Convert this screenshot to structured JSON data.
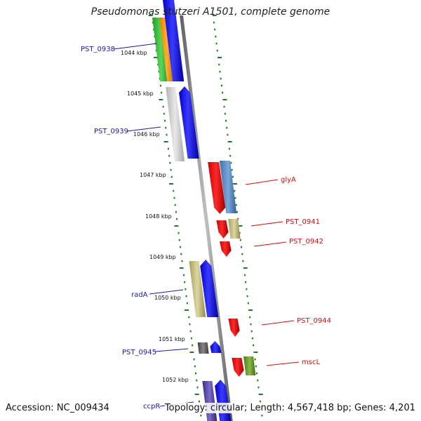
{
  "title": "Pseudomonas stutzeri A1501, complete genome",
  "accession_text": "Accession: NC_009434",
  "summary_text": "Topology: circular; Length: 4,567,418 bp; Genes: 4,201",
  "colors": {
    "strand_forward_label": "#1a1aa6",
    "strand_reverse_label": "#cc1111",
    "tick_dash": "#1e7d1e",
    "backbone": "#8a8a8a"
  },
  "kbp_labels": [
    "1044 kbp",
    "1045 kbp",
    "1046 kbp",
    "1047 kbp",
    "1048 kbp",
    "1049 kbp",
    "1050 kbp",
    "1051 kbp",
    "1052 kbp"
  ],
  "gene_labels_left": [
    {
      "text": "PST_0938",
      "color": "#1a1aa6"
    },
    {
      "text": "PST_0939",
      "color": "#1a1aa6"
    },
    {
      "text": "radA",
      "color": "#1a1aa6"
    },
    {
      "text": "PST_0945",
      "color": "#1a1aa6"
    },
    {
      "text": "ccpR",
      "color": "#1a1aa6"
    }
  ],
  "gene_labels_right": [
    {
      "text": "glyA",
      "color": "#cc1111"
    },
    {
      "text": "PST_0941",
      "color": "#cc1111"
    },
    {
      "text": "PST_0942",
      "color": "#cc1111"
    },
    {
      "text": "PST_0944",
      "color": "#cc1111"
    },
    {
      "text": "mscL",
      "color": "#cc1111"
    }
  ]
}
